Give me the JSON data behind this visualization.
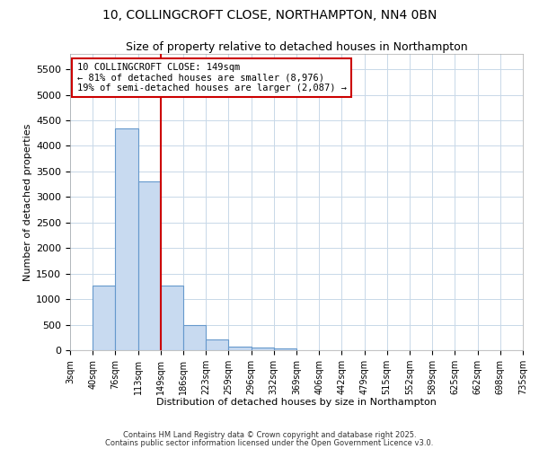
{
  "title_line1": "10, COLLINGCROFT CLOSE, NORTHAMPTON, NN4 0BN",
  "title_line2": "Size of property relative to detached houses in Northampton",
  "xlabel": "Distribution of detached houses by size in Northampton",
  "ylabel": "Number of detached properties",
  "bar_edges": [
    3,
    40,
    76,
    113,
    149,
    186,
    223,
    259,
    296,
    332,
    369,
    406,
    442,
    479,
    515,
    552,
    589,
    625,
    662,
    698,
    735
  ],
  "bar_heights": [
    0,
    1270,
    4350,
    3300,
    1270,
    500,
    215,
    75,
    50,
    40,
    0,
    0,
    0,
    0,
    0,
    0,
    0,
    0,
    0,
    0
  ],
  "bar_color": "#c8daf0",
  "bar_edgecolor": "#6699cc",
  "vline_x": 149,
  "vline_color": "#cc0000",
  "ylim": [
    0,
    5800
  ],
  "yticks": [
    0,
    500,
    1000,
    1500,
    2000,
    2500,
    3000,
    3500,
    4000,
    4500,
    5000,
    5500
  ],
  "annotation_text": "10 COLLINGCROFT CLOSE: 149sqm\n← 81% of detached houses are smaller (8,976)\n19% of semi-detached houses are larger (2,087) →",
  "annotation_box_color": "#cc0000",
  "footnote1": "Contains HM Land Registry data © Crown copyright and database right 2025.",
  "footnote2": "Contains public sector information licensed under the Open Government Licence v3.0.",
  "bg_color": "#ffffff",
  "grid_color": "#c8d8e8"
}
